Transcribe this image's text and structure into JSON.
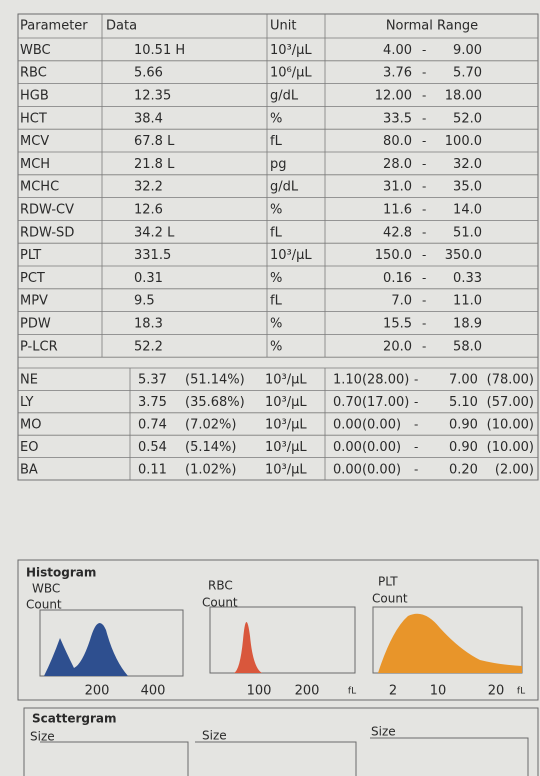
{
  "table": {
    "header": [
      "Parameter",
      "Data",
      "Unit",
      "Normal Range"
    ],
    "separator": "-",
    "rows": [
      [
        "WBC",
        "10.51 H",
        "10³/μL",
        "4.00",
        "9.00"
      ],
      [
        "RBC",
        "5.66",
        "10⁶/μL",
        "3.76",
        "5.70"
      ],
      [
        "HGB",
        "12.35",
        "g/dL",
        "12.00",
        "18.00"
      ],
      [
        "HCT",
        "38.4",
        "%",
        "33.5",
        "52.0"
      ],
      [
        "MCV",
        "67.8 L",
        "fL",
        "80.0",
        "100.0"
      ],
      [
        "MCH",
        "21.8 L",
        "pg",
        "28.0",
        "32.0"
      ],
      [
        "MCHC",
        "32.2",
        "g/dL",
        "31.0",
        "35.0"
      ],
      [
        "RDW-CV",
        "12.6",
        "%",
        "11.6",
        "14.0"
      ],
      [
        "RDW-SD",
        "34.2 L",
        "fL",
        "42.8",
        "51.0"
      ],
      [
        "PLT",
        "331.5",
        "10³/μL",
        "150.0",
        "350.0"
      ],
      [
        "PCT",
        "0.31",
        "%",
        "0.16",
        "0.33"
      ],
      [
        "MPV",
        "9.5",
        "fL",
        "7.0",
        "11.0"
      ],
      [
        "PDW",
        "18.3",
        "%",
        "15.5",
        "18.9"
      ],
      [
        "P-LCR",
        "52.2",
        "%",
        "20.0",
        "58.0"
      ]
    ],
    "differential": [
      [
        "NE",
        "5.37",
        "(51.14%)",
        "10³/μL",
        "1.10(28.00)",
        "7.00",
        "(78.00)"
      ],
      [
        "LY",
        "3.75",
        "(35.68%)",
        "10³/μL",
        "0.70(17.00)",
        "5.10",
        "(57.00)"
      ],
      [
        "MO",
        "0.74",
        "(7.02%)",
        "10³/μL",
        "0.00(0.00)",
        "0.90",
        "(10.00)"
      ],
      [
        "EO",
        "0.54",
        "(5.14%)",
        "10³/μL",
        "0.00(0.00)",
        "0.90",
        "(10.00)"
      ],
      [
        "BA",
        "0.11",
        "(1.02%)",
        "10³/μL",
        "0.00(0.00)",
        "0.20",
        "(2.00)"
      ]
    ]
  },
  "histogram": {
    "title": "Histogram",
    "charts": [
      {
        "label": "WBC",
        "axis": "Count",
        "ticks": [
          "200",
          "400"
        ]
      },
      {
        "label": "RBC",
        "axis": "Count",
        "ticks": [
          "100",
          "200"
        ],
        "unit": "fL"
      },
      {
        "label": "PLT",
        "axis": "Count",
        "ticks": [
          "2",
          "10",
          "20"
        ],
        "unit": "fL"
      }
    ]
  },
  "scattergram": {
    "title": "Scattergram",
    "axes": [
      "Size",
      "Size",
      "Size"
    ]
  }
}
